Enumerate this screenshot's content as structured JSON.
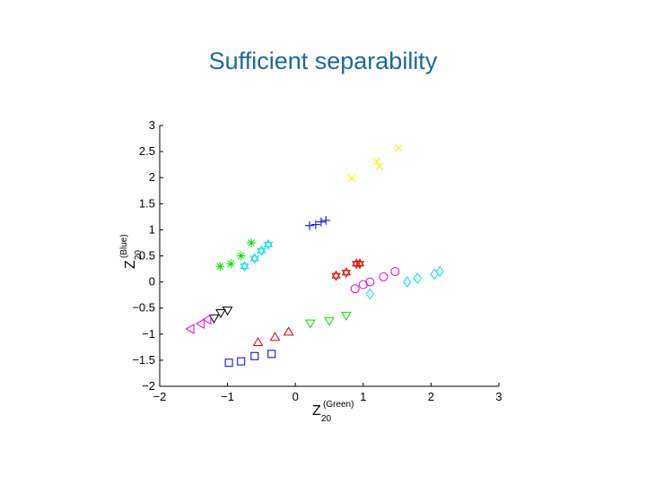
{
  "chart_data": {
    "type": "scatter",
    "title": "Sufficient separability",
    "xlabel": {
      "base": "Z",
      "sub": "20",
      "sup": "(Green)"
    },
    "ylabel": {
      "base": "Z",
      "sub": "20",
      "sup": "(Blue)"
    },
    "xlim": [
      -2,
      3
    ],
    "ylim": [
      -2,
      3
    ],
    "xticks": [
      {
        "value": -2,
        "label": "−2"
      },
      {
        "value": -1,
        "label": "−1"
      },
      0,
      1,
      2,
      3
    ],
    "yticks": [
      {
        "value": -2,
        "label": "−2"
      },
      {
        "value": -1.5,
        "label": "−1.5"
      },
      {
        "value": -1,
        "label": "−1"
      },
      {
        "value": -0.5,
        "label": "−0.5"
      },
      0,
      0.5,
      1,
      1.5,
      2,
      2.5,
      3
    ],
    "series": [
      {
        "color": "#ffee00",
        "marker": "x",
        "x": [
          0.83,
          1.2,
          1.24,
          1.52
        ],
        "values": [
          1.99,
          2.31,
          2.21,
          2.57
        ]
      },
      {
        "color": "#0000cc",
        "marker": "plus",
        "x": [
          0.21,
          0.3,
          0.38,
          0.45
        ],
        "values": [
          1.08,
          1.1,
          1.15,
          1.18
        ]
      },
      {
        "color": "#00dd00",
        "marker": "asterisk",
        "x": [
          -1.11,
          -0.95,
          -0.8,
          -0.65
        ],
        "values": [
          0.3,
          0.35,
          0.5,
          0.75
        ]
      },
      {
        "color": "#00ddee",
        "marker": "hexagram",
        "x": [
          -0.75,
          -0.6,
          -0.5,
          -0.4
        ],
        "values": [
          0.3,
          0.45,
          0.6,
          0.72
        ]
      },
      {
        "color": "#dd0000",
        "marker": "hexagram",
        "x": [
          0.6,
          0.75,
          0.9,
          0.95
        ],
        "values": [
          0.12,
          0.18,
          0.35,
          0.35
        ]
      },
      {
        "color": "#dd00dd",
        "marker": "circle",
        "x": [
          0.88,
          1.0,
          1.1,
          1.3,
          1.47
        ],
        "values": [
          -0.13,
          -0.05,
          0.0,
          0.1,
          0.2
        ]
      },
      {
        "color": "#00ddee",
        "marker": "diamond",
        "x": [
          1.1,
          1.65,
          1.8,
          2.05,
          2.13
        ],
        "values": [
          -0.23,
          0.0,
          0.07,
          0.15,
          0.2
        ]
      },
      {
        "color": "#000000",
        "marker": "tridown",
        "x": [
          -1.2,
          -1.1,
          -1.0
        ],
        "values": [
          -0.7,
          -0.6,
          -0.55
        ]
      },
      {
        "color": "#dd00dd",
        "marker": "trileft",
        "x": [
          -1.55,
          -1.4,
          -1.3
        ],
        "values": [
          -0.9,
          -0.8,
          -0.72
        ]
      },
      {
        "color": "#00dd00",
        "marker": "tridown",
        "x": [
          0.22,
          0.5,
          0.75
        ],
        "values": [
          -0.8,
          -0.75,
          -0.65
        ]
      },
      {
        "color": "#dd0000",
        "marker": "triup",
        "x": [
          -0.55,
          -0.3,
          -0.1
        ],
        "values": [
          -1.15,
          -1.05,
          -0.95
        ]
      },
      {
        "color": "#0000cc",
        "marker": "square",
        "x": [
          -0.98,
          -0.8,
          -0.6,
          -0.35
        ],
        "values": [
          -1.55,
          -1.52,
          -1.42,
          -1.38
        ]
      }
    ]
  }
}
